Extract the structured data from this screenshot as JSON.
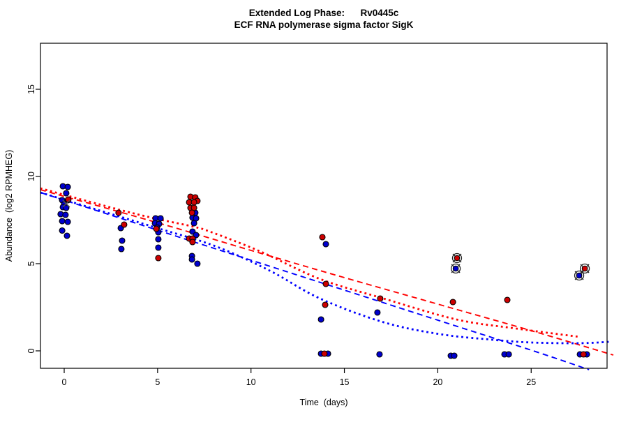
{
  "title": {
    "line1": "Extended Log Phase:      Rv0445c",
    "line2": "ECF RNA polymerase sigma factor SigK"
  },
  "chart_data": {
    "type": "scatter",
    "title": "Extended Log Phase:      Rv0445c",
    "subtitle": "ECF RNA polymerase sigma factor SigK",
    "xlabel": "Time  (days)",
    "ylabel": "Abundance  (log2 RPMHEG)",
    "xlim": [
      -1.3,
      29.1
    ],
    "ylim": [
      -1.0,
      17.6
    ],
    "x_ticks": [
      0,
      5,
      10,
      15,
      20,
      25
    ],
    "y_ticks": [
      0,
      5,
      10,
      15
    ],
    "grid": false,
    "legend": "none",
    "point_colors": {
      "blue": "#0000CD",
      "red": "#CC0000"
    },
    "line_colors": {
      "red": "#FF0000",
      "blue": "#0000FF"
    },
    "series": [
      {
        "name": "blue-points",
        "color": "#0000CD",
        "points": [
          [
            -0.07,
            9.44
          ],
          [
            0.19,
            9.4
          ],
          [
            0.11,
            9.04
          ],
          [
            -0.11,
            8.64
          ],
          [
            0.19,
            8.64
          ],
          [
            0.0,
            8.4
          ],
          [
            -0.07,
            8.24
          ],
          [
            0.11,
            8.2
          ],
          [
            -0.19,
            7.84
          ],
          [
            0.07,
            7.8
          ],
          [
            -0.11,
            7.44
          ],
          [
            0.19,
            7.4
          ],
          [
            -0.11,
            6.9
          ],
          [
            0.15,
            6.6
          ],
          [
            3.03,
            7.04
          ],
          [
            3.1,
            6.32
          ],
          [
            3.06,
            5.84
          ],
          [
            4.89,
            7.6
          ],
          [
            5.16,
            7.6
          ],
          [
            4.86,
            7.32
          ],
          [
            5.08,
            7.28
          ],
          [
            4.97,
            7.08
          ],
          [
            5.04,
            6.8
          ],
          [
            5.04,
            6.4
          ],
          [
            5.04,
            5.92
          ],
          [
            7.02,
            7.92
          ],
          [
            6.87,
            7.64
          ],
          [
            7.06,
            7.6
          ],
          [
            6.95,
            7.32
          ],
          [
            6.87,
            6.84
          ],
          [
            7.06,
            6.64
          ],
          [
            6.84,
            5.44
          ],
          [
            6.84,
            5.24
          ],
          [
            7.13,
            5.0
          ],
          [
            14.01,
            6.12
          ],
          [
            13.75,
            1.8
          ],
          [
            13.75,
            -0.16
          ],
          [
            14.12,
            -0.16
          ],
          [
            16.77,
            2.2
          ],
          [
            16.88,
            -0.2
          ],
          [
            20.7,
            -0.28
          ],
          [
            20.88,
            -0.28
          ],
          [
            23.57,
            -0.2
          ],
          [
            23.8,
            -0.2
          ],
          [
            27.61,
            -0.2
          ],
          [
            27.98,
            -0.2
          ]
        ]
      },
      {
        "name": "red-points",
        "color": "#CC0000",
        "points": [
          [
            0.22,
            8.68
          ],
          [
            2.91,
            7.92
          ],
          [
            3.21,
            7.24
          ],
          [
            4.93,
            7.0
          ],
          [
            5.04,
            5.32
          ],
          [
            6.76,
            8.84
          ],
          [
            7.02,
            8.8
          ],
          [
            7.13,
            8.6
          ],
          [
            6.69,
            8.52
          ],
          [
            6.95,
            8.52
          ],
          [
            6.76,
            8.2
          ],
          [
            6.95,
            8.2
          ],
          [
            6.84,
            7.92
          ],
          [
            6.69,
            6.44
          ],
          [
            6.87,
            6.44
          ],
          [
            6.87,
            6.24
          ],
          [
            13.82,
            6.52
          ],
          [
            14.01,
            3.84
          ],
          [
            13.97,
            2.64
          ],
          [
            13.93,
            -0.16
          ],
          [
            16.92,
            3.0
          ],
          [
            20.81,
            2.8
          ],
          [
            23.72,
            2.92
          ],
          [
            27.8,
            -0.2
          ]
        ]
      }
    ],
    "outlier_markers": [
      {
        "x": 21.03,
        "y": 5.32,
        "color": "#CC0000"
      },
      {
        "x": 20.96,
        "y": 4.72,
        "color": "#0000CD"
      },
      {
        "x": 27.87,
        "y": 4.72,
        "color": "#CC0000"
      },
      {
        "x": 27.57,
        "y": 4.32,
        "color": "#0000CD"
      }
    ],
    "cross_marker": {
      "x": 0.11,
      "y": 8.44
    },
    "trend_lines": [
      {
        "name": "red-dashed-fit",
        "color": "#FF0000",
        "style": "dashed",
        "points": [
          [
            -1.27,
            9.24
          ],
          [
            5.0,
            7.35
          ],
          [
            10.0,
            5.76
          ],
          [
            15.0,
            4.2
          ],
          [
            20.0,
            2.68
          ],
          [
            25.0,
            1.16
          ],
          [
            29.4,
            -0.24
          ]
        ]
      },
      {
        "name": "blue-dashed-fit",
        "color": "#0000FF",
        "style": "dashed",
        "points": [
          [
            -1.27,
            9.08
          ],
          [
            5.0,
            6.92
          ],
          [
            10.0,
            5.2
          ],
          [
            15.0,
            3.48
          ],
          [
            20.0,
            1.76
          ],
          [
            25.0,
            0.04
          ],
          [
            28.1,
            -1.08
          ]
        ]
      },
      {
        "name": "red-dotted-fit",
        "color": "#FF0000",
        "style": "dotted",
        "points": [
          [
            -1.27,
            9.32
          ],
          [
            3.0,
            8.08
          ],
          [
            5.0,
            7.56
          ],
          [
            7.0,
            7.1
          ],
          [
            7.9,
            6.8
          ],
          [
            10.5,
            5.7
          ],
          [
            13.7,
            4.12
          ],
          [
            17.1,
            3.0
          ],
          [
            21.0,
            1.8
          ],
          [
            24.2,
            1.28
          ],
          [
            27.6,
            0.8
          ]
        ]
      },
      {
        "name": "blue-dotted-fit",
        "color": "#0000FF",
        "style": "dotted",
        "points": [
          [
            -1.27,
            9.08
          ],
          [
            5.0,
            7.04
          ],
          [
            8.1,
            6.0
          ],
          [
            11.0,
            4.6
          ],
          [
            13.7,
            3.0
          ],
          [
            17.1,
            1.64
          ],
          [
            20.1,
            0.96
          ],
          [
            22.9,
            0.64
          ],
          [
            25.0,
            0.48
          ],
          [
            27.6,
            0.44
          ],
          [
            29.2,
            0.52
          ]
        ]
      }
    ]
  }
}
